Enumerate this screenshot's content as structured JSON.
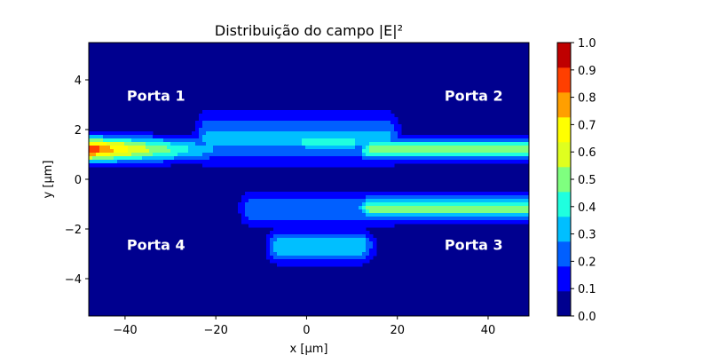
{
  "chart_data": {
    "type": "heatmap",
    "title": "Distribuição do campo |E|²",
    "xlabel": "x [µm]",
    "ylabel": "y [µm]",
    "xlim": [
      -48,
      49
    ],
    "ylim": [
      -5.5,
      5.5
    ],
    "xticks": [
      -40,
      -20,
      0,
      20,
      40
    ],
    "yticks": [
      -4,
      -2,
      0,
      2,
      4
    ],
    "grid": false,
    "colorbar": {
      "levels": [
        0.0,
        0.1,
        0.2,
        0.3,
        0.4,
        0.5,
        0.6,
        0.7,
        0.8,
        0.9,
        1.0
      ],
      "colors": [
        "#00008f",
        "#0000ff",
        "#005fff",
        "#00bfff",
        "#1fffdf",
        "#7fff7f",
        "#dfff1f",
        "#ffff00",
        "#ff9f00",
        "#ff3f00",
        "#bf0000"
      ]
    },
    "annotations": [
      {
        "text": "Porta 1",
        "x": -40,
        "y": 2.7
      },
      {
        "text": "Porta 2",
        "x": 30,
        "y": 2.7
      },
      {
        "text": "Porta 3",
        "x": 30,
        "y": -3.3
      },
      {
        "text": "Porta 4",
        "x": -40,
        "y": -3.3
      }
    ],
    "field_components": [
      {
        "name": "input-arm",
        "x0": -48,
        "x1": -14,
        "y": 1.2,
        "amplitude": 1.0,
        "decay": 26,
        "sigma_y": 0.35
      },
      {
        "name": "coupler-top",
        "x0": -22,
        "x1": 18,
        "y": 1.6,
        "amplitude": 0.32,
        "decay": 0,
        "sigma_y": 0.75
      },
      {
        "name": "coupler-hotspot",
        "x0": 0,
        "x1": 10,
        "y": 1.5,
        "amplitude": 0.45,
        "decay": 0,
        "sigma_y": 0.25
      },
      {
        "name": "coupler-bottom",
        "x0": -12,
        "x1": 18,
        "y": -1.2,
        "amplitude": 0.28,
        "decay": 0,
        "sigma_y": 0.5
      },
      {
        "name": "through-arm",
        "x0": 14,
        "x1": 49,
        "y": 1.2,
        "amplitude": 0.52,
        "decay": 0,
        "sigma_y": 0.32
      },
      {
        "name": "cross-arm",
        "x0": 14,
        "x1": 49,
        "y": -1.15,
        "amplitude": 0.55,
        "decay": 0,
        "sigma_y": 0.32
      },
      {
        "name": "lower-blob",
        "x0": -6,
        "x1": 12,
        "y": -2.7,
        "amplitude": 0.38,
        "decay": 0,
        "sigma_y": 0.45
      }
    ]
  }
}
